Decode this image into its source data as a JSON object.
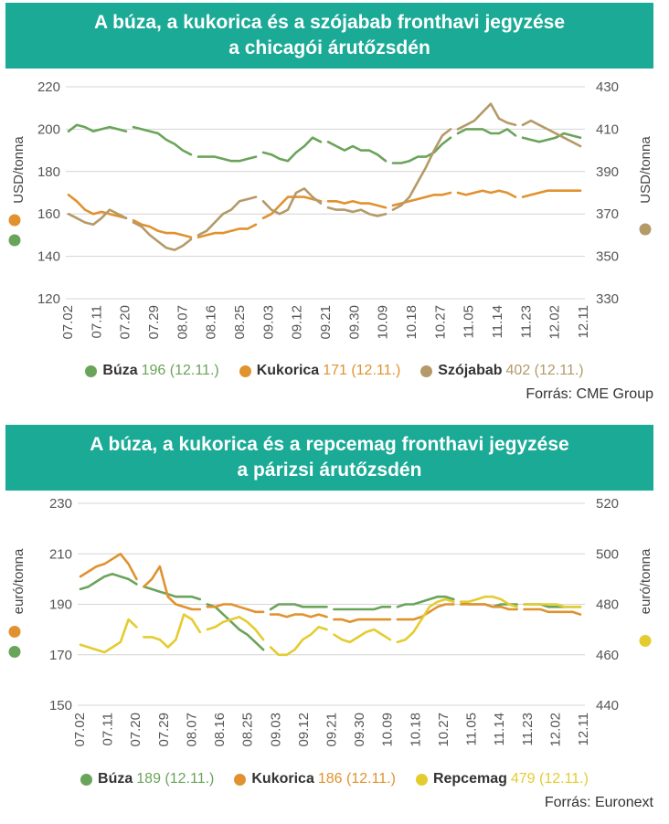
{
  "chart_data": [
    {
      "type": "line",
      "title_line1": "A búza, a kukorica és a szójabab fronthavi jegyzése",
      "title_line2": "a chicagói árutőzsdén",
      "ylabel_left": "USD/tonna",
      "ylabel_right": "USD/tonna",
      "ylim_left": [
        120,
        220
      ],
      "ylim_right": [
        330,
        430
      ],
      "yticks_left": [
        "120",
        "140",
        "160",
        "180",
        "200",
        "220"
      ],
      "yticks_right": [
        "330",
        "350",
        "370",
        "390",
        "410",
        "430"
      ],
      "x_labels": [
        "07.02",
        "07.11",
        "07.20",
        "07.29",
        "08.07",
        "08.16",
        "08.25",
        "09.03",
        "09.12",
        "09.21",
        "09.30",
        "10.09",
        "10.18",
        "10.27",
        "11.05",
        "11.14",
        "11.23",
        "12.02",
        "12.11"
      ],
      "grid": true,
      "legend_position": "bottom",
      "source": "Forrás: CME Group",
      "series": [
        {
          "name": "Búza",
          "value_text": "196",
          "date_text": "(12.11.)",
          "color": "#6aa45a",
          "axis": "left",
          "values": [
            [
              199,
              202,
              201,
              199,
              200,
              201,
              200,
              199
            ],
            [
              201,
              200,
              199,
              198,
              195,
              193,
              190,
              188
            ],
            [
              187,
              187,
              187,
              186,
              185,
              185,
              186,
              187
            ],
            [
              189,
              188,
              186,
              185,
              189,
              192,
              196,
              194
            ],
            [
              194,
              192,
              190,
              192,
              190,
              190,
              188,
              185
            ],
            [
              184,
              184,
              185,
              187,
              187,
              189,
              193,
              196
            ],
            [
              198,
              200,
              200,
              200,
              198,
              198,
              200,
              197
            ],
            [
              196,
              195,
              194,
              195,
              196,
              198,
              197,
              196
            ]
          ]
        },
        {
          "name": "Kukorica",
          "value_text": "171",
          "date_text": "(12.11.)",
          "color": "#e0922f",
          "axis": "left",
          "values": [
            [
              169,
              166,
              162,
              160,
              161,
              160,
              159,
              158
            ],
            [
              157,
              155,
              154,
              152,
              151,
              151,
              150,
              149
            ],
            [
              149,
              150,
              151,
              151,
              152,
              153,
              153,
              155
            ],
            [
              158,
              160,
              164,
              168,
              168,
              168,
              167,
              166
            ],
            [
              166,
              166,
              165,
              166,
              165,
              165,
              164,
              163
            ],
            [
              164,
              165,
              166,
              167,
              168,
              169,
              169,
              170
            ],
            [
              170,
              169,
              170,
              171,
              170,
              171,
              170,
              168
            ],
            [
              168,
              169,
              170,
              171,
              171,
              171,
              171,
              171
            ]
          ]
        },
        {
          "name": "Szójabab",
          "value_text": "402",
          "date_text": "(12.11.)",
          "color": "#b49a68",
          "axis": "right",
          "values": [
            [
              370,
              368,
              366,
              365,
              368,
              372,
              370,
              368
            ],
            [
              366,
              364,
              360,
              357,
              354,
              353,
              355,
              358
            ],
            [
              360,
              362,
              366,
              370,
              372,
              376,
              377,
              378
            ],
            [
              376,
              372,
              370,
              372,
              380,
              382,
              378,
              375
            ],
            [
              373,
              372,
              372,
              371,
              372,
              370,
              369,
              370
            ],
            [
              372,
              374,
              378,
              385,
              392,
              400,
              407,
              410
            ],
            [
              410,
              412,
              414,
              418,
              422,
              415,
              413,
              412
            ],
            [
              412,
              414,
              412,
              410,
              408,
              406,
              404,
              402
            ]
          ]
        }
      ]
    },
    {
      "type": "line",
      "title_line1": "A búza, a kukorica és a repcemag fronthavi jegyzése",
      "title_line2": "a párizsi árutőzsdén",
      "ylabel_left": "euró/tonna",
      "ylabel_right": "euró/tonna",
      "ylim_left": [
        150,
        230
      ],
      "ylim_right": [
        440,
        520
      ],
      "yticks_left": [
        "150",
        "170",
        "190",
        "210",
        "230"
      ],
      "yticks_right": [
        "440",
        "460",
        "480",
        "500",
        "520"
      ],
      "x_labels": [
        "07.02",
        "07.11",
        "07.20",
        "07.29",
        "08.07",
        "08.16",
        "08.25",
        "09.03",
        "09.12",
        "09.21",
        "09.30",
        "10.09",
        "10.18",
        "10.27",
        "11.05",
        "11.14",
        "11.23",
        "12.02",
        "12.11"
      ],
      "grid": true,
      "legend_position": "bottom",
      "source": "Forrás: Euronext",
      "series": [
        {
          "name": "Búza",
          "value_text": "189",
          "date_text": "(12.11.)",
          "color": "#6aa45a",
          "axis": "left",
          "values": [
            [
              196,
              197,
              199,
              201,
              202,
              201,
              200,
              198
            ],
            [
              197,
              196,
              195,
              194,
              193,
              193,
              193,
              192
            ],
            [
              190,
              189,
              186,
              183,
              180,
              178,
              175,
              172
            ],
            [
              188,
              190,
              190,
              190,
              189,
              189,
              189,
              189
            ],
            [
              188,
              188,
              188,
              188,
              188,
              188,
              189,
              189
            ],
            [
              189,
              190,
              190,
              191,
              192,
              193,
              193,
              192
            ],
            [
              191,
              190,
              190,
              190,
              189,
              190,
              190,
              190
            ],
            [
              190,
              190,
              190,
              189,
              189,
              189,
              189,
              189
            ]
          ]
        },
        {
          "name": "Kukorica",
          "value_text": "186",
          "date_text": "(12.11.)",
          "color": "#e0922f",
          "axis": "left",
          "values": [
            [
              201,
              203,
              205,
              206,
              208,
              210,
              206,
              200
            ],
            [
              197,
              200,
              205,
              193,
              190,
              189,
              188,
              188
            ],
            [
              189,
              189,
              190,
              190,
              189,
              188,
              187,
              187
            ],
            [
              186,
              186,
              185,
              186,
              186,
              185,
              186,
              185
            ],
            [
              184,
              184,
              183,
              184,
              184,
              184,
              184,
              184
            ],
            [
              184,
              184,
              184,
              185,
              187,
              189,
              190,
              190
            ],
            [
              190,
              190,
              190,
              190,
              189,
              189,
              188,
              188
            ],
            [
              188,
              188,
              188,
              187,
              187,
              187,
              187,
              186
            ]
          ]
        },
        {
          "name": "Repcemag",
          "value_text": "479",
          "date_text": "(12.11.)",
          "color": "#e4cc30",
          "axis": "right",
          "values": [
            [
              464,
              463,
              462,
              461,
              463,
              465,
              474,
              471
            ],
            [
              467,
              467,
              466,
              463,
              466,
              476,
              474,
              469
            ],
            [
              470,
              471,
              473,
              474,
              475,
              473,
              470,
              466
            ],
            [
              463,
              460,
              460,
              462,
              466,
              468,
              471,
              470
            ],
            [
              468,
              466,
              465,
              467,
              469,
              470,
              468,
              466
            ],
            [
              465,
              466,
              469,
              474,
              479,
              481,
              482,
              481
            ],
            [
              481,
              481,
              482,
              483,
              483,
              482,
              480,
              479
            ],
            [
              480,
              480,
              480,
              480,
              480,
              479,
              479,
              479
            ]
          ]
        }
      ]
    }
  ]
}
